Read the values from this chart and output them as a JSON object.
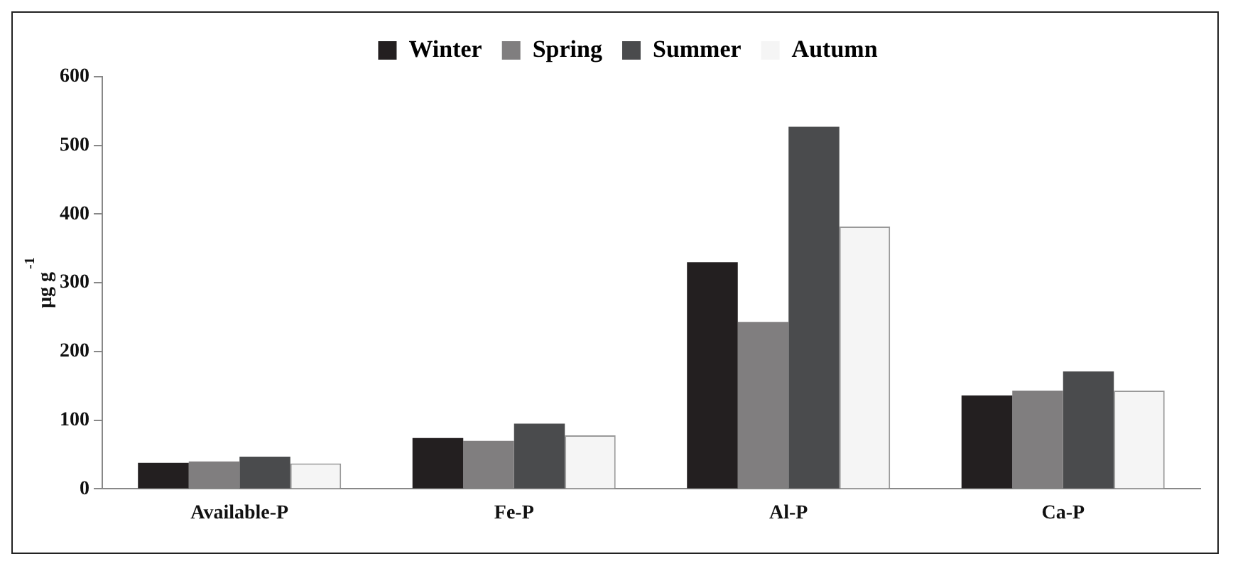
{
  "chart_data": {
    "type": "bar",
    "ylabel": "µg g$^{-1}$",
    "categories": [
      "Available-P",
      "Fe-P",
      "Al-P",
      "Ca-P"
    ],
    "series": [
      {
        "name": "Winter",
        "color": "#231f20",
        "values": [
          38,
          74,
          330,
          136
        ]
      },
      {
        "name": "Spring",
        "color": "#807e7f",
        "values": [
          40,
          70,
          243,
          143
        ]
      },
      {
        "name": "Summer",
        "color": "#4a4b4d",
        "values": [
          47,
          95,
          527,
          171
        ]
      },
      {
        "name": "Autumn",
        "color": "#f5f5f5",
        "values": [
          37,
          78,
          382,
          143
        ]
      }
    ],
    "ylim": [
      0,
      600
    ],
    "yticks": [
      0,
      100,
      200,
      300,
      400,
      500,
      600
    ],
    "grid": false,
    "legend": "top"
  }
}
